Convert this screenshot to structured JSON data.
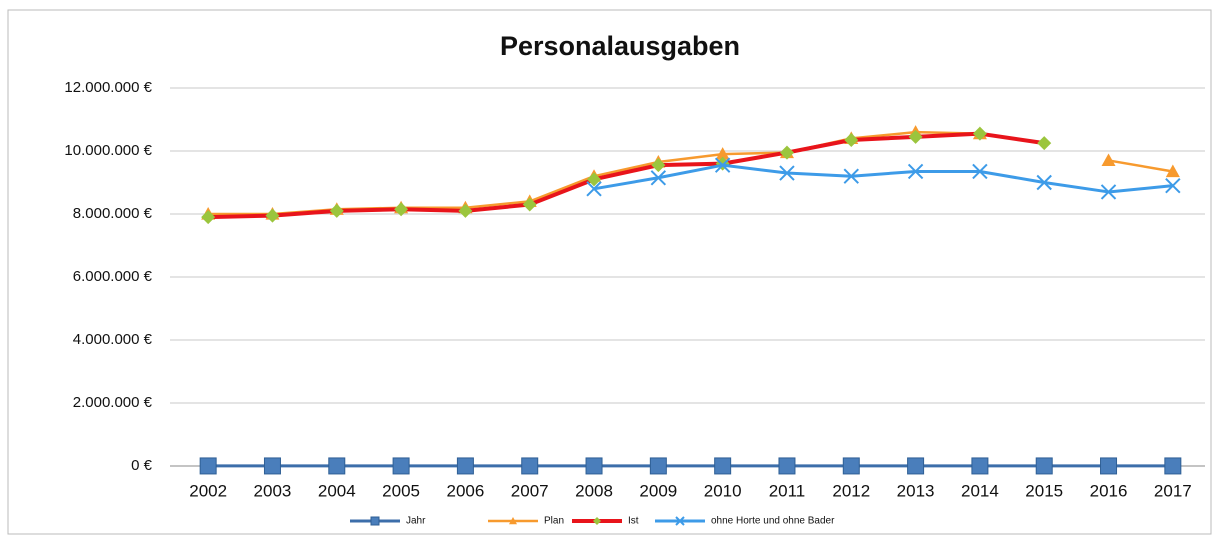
{
  "chart_data": {
    "type": "line",
    "title": "Personalausgaben",
    "categories": [
      "2002",
      "2003",
      "2004",
      "2005",
      "2006",
      "2007",
      "2008",
      "2009",
      "2010",
      "2011",
      "2012",
      "2013",
      "2014",
      "2015",
      "2016",
      "2017"
    ],
    "series": [
      {
        "name": "Jahr",
        "color": "#3c6eaa",
        "marker": "square",
        "marker_color": "#4a7ebb",
        "values": [
          2002,
          2003,
          2004,
          2005,
          2006,
          2007,
          2008,
          2009,
          2010,
          2011,
          2012,
          2013,
          2014,
          2015,
          2016,
          2017
        ]
      },
      {
        "name": "Plan",
        "color": "#f79a2e",
        "marker": "triangle",
        "marker_color": "#f79a2e",
        "values": [
          8000000,
          8000000,
          8150000,
          8200000,
          8200000,
          8400000,
          9200000,
          9650000,
          9900000,
          9950000,
          10400000,
          10600000,
          10550000,
          null,
          9700000,
          9350000
        ]
      },
      {
        "name": "Ist",
        "color": "#e8141b",
        "marker": "diamond",
        "marker_color": "#9bc53d",
        "values": [
          7900000,
          7950000,
          8100000,
          8150000,
          8100000,
          8300000,
          9100000,
          9550000,
          9600000,
          9950000,
          10350000,
          10450000,
          10550000,
          10250000,
          null,
          null
        ]
      },
      {
        "name": "ohne Horte und ohne Bader",
        "color": "#3d9be8",
        "marker": "x",
        "marker_color": "#3d9be8",
        "values": [
          null,
          null,
          null,
          null,
          null,
          null,
          8800000,
          9150000,
          9550000,
          9300000,
          9200000,
          9350000,
          9350000,
          9000000,
          8700000,
          8900000
        ]
      }
    ],
    "ylim": [
      0,
      12000000
    ],
    "yticks": [
      {
        "value": 0,
        "label": "0 €"
      },
      {
        "value": 2000000,
        "label": "2.000.000 €"
      },
      {
        "value": 4000000,
        "label": "4.000.000 €"
      },
      {
        "value": 6000000,
        "label": "6.000.000 €"
      },
      {
        "value": 8000000,
        "label": "8.000.000 €"
      },
      {
        "value": 10000000,
        "label": "10.000.000 €"
      },
      {
        "value": 12000000,
        "label": "12.000.000 €"
      }
    ],
    "grid": true,
    "legend": "bottom"
  }
}
